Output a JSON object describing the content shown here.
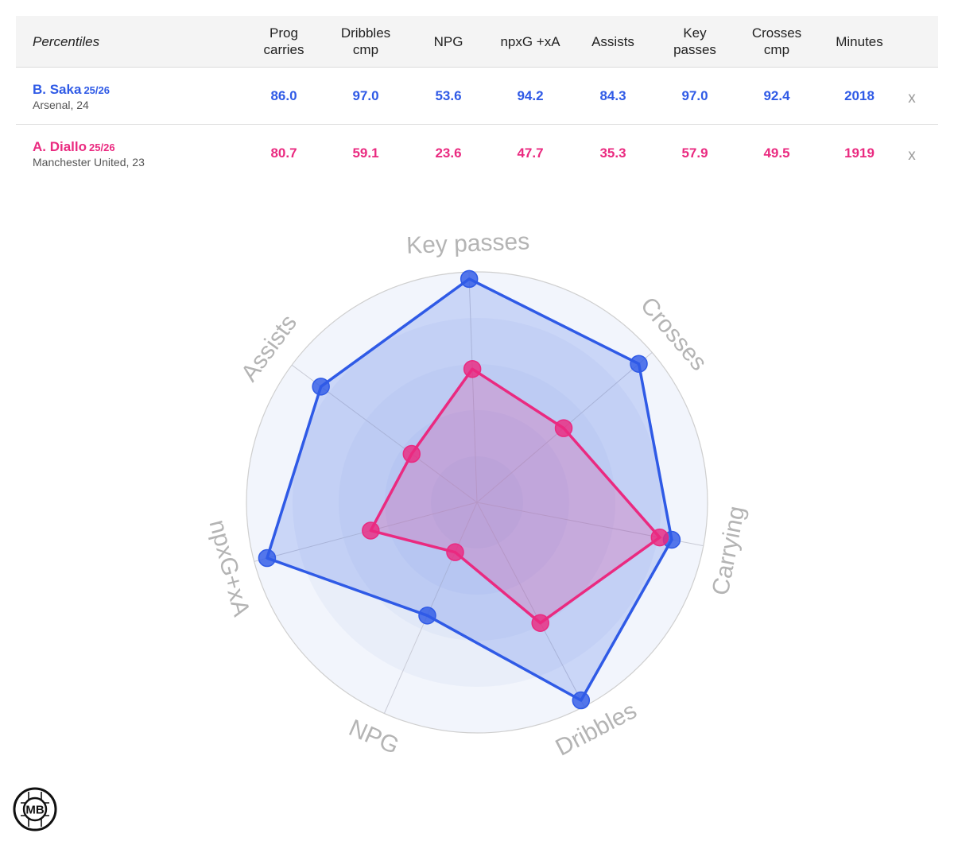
{
  "table": {
    "header_label": "Percentiles",
    "columns": [
      "Prog\ncarries",
      "Dribbles\ncmp",
      "NPG",
      "npxG +xA",
      "Assists",
      "Key\npasses",
      "Crosses\ncmp",
      "Minutes"
    ],
    "remove_label": "x",
    "players": [
      {
        "name": "B. Saka",
        "season": "25/26",
        "meta": "Arsenal, 24",
        "color": "#2f5ae6",
        "values": [
          "86.0",
          "97.0",
          "53.6",
          "94.2",
          "84.3",
          "97.0",
          "92.4",
          "2018"
        ]
      },
      {
        "name": "A. Diallo",
        "season": "25/26",
        "meta": "Manchester United, 23",
        "color": "#ea2a80",
        "values": [
          "80.7",
          "59.1",
          "23.6",
          "47.7",
          "35.3",
          "57.9",
          "49.5",
          "1919"
        ]
      }
    ]
  },
  "chart_data": {
    "type": "radar",
    "axes": [
      "Key passes",
      "Crosses",
      "Carrying",
      "Dribbles",
      "NPG",
      "npxG+xA",
      "Assists"
    ],
    "range": [
      0,
      100
    ],
    "grid": true,
    "series": [
      {
        "name": "B. Saka",
        "color": "#2f5ae6",
        "values": [
          97.0,
          92.4,
          86.0,
          97.0,
          53.6,
          94.2,
          84.3
        ]
      },
      {
        "name": "A. Diallo",
        "color": "#ea2a80",
        "values": [
          57.9,
          49.5,
          80.7,
          59.1,
          23.6,
          47.7,
          35.3
        ]
      }
    ]
  },
  "logo": {
    "text": "MB"
  }
}
